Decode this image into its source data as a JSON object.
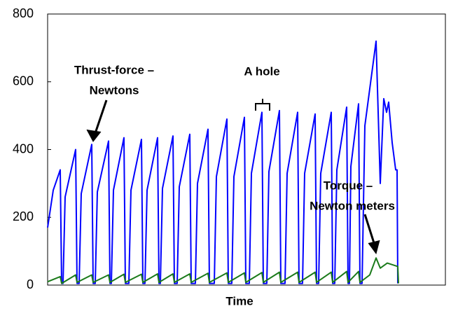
{
  "chart_data": {
    "type": "line",
    "xlabel": "Time",
    "ylim": [
      0,
      800
    ],
    "yticks": [
      0,
      200,
      400,
      600,
      800
    ],
    "xlim": [
      0,
      568
    ],
    "series": [
      {
        "name": "Thrust-force – Newtons",
        "color": "#0000ff",
        "x": [
          0,
          8,
          18,
          20,
          22,
          25,
          40,
          42,
          45,
          48,
          63,
          65,
          68,
          71,
          87,
          89,
          91,
          94,
          109,
          111,
          116,
          119,
          134,
          136,
          139,
          142,
          157,
          159,
          161,
          164,
          179,
          181,
          185,
          188,
          203,
          205,
          211,
          214,
          229,
          231,
          238,
          241,
          256,
          258,
          263,
          266,
          281,
          283,
          288,
          291,
          306,
          308,
          313,
          316,
          331,
          333,
          339,
          342,
          357,
          359,
          364,
          367,
          382,
          384,
          387,
          390,
          405,
          407,
          410,
          413,
          427,
          429,
          431,
          433,
          444,
          446,
          449,
          453,
          469,
          475,
          480,
          484,
          487,
          492,
          497,
          499,
          500
        ],
        "values": [
          170,
          280,
          340,
          5,
          5,
          260,
          400,
          5,
          5,
          270,
          415,
          5,
          5,
          275,
          425,
          5,
          5,
          280,
          435,
          5,
          5,
          280,
          430,
          5,
          5,
          280,
          435,
          5,
          5,
          285,
          440,
          5,
          5,
          290,
          445,
          5,
          5,
          300,
          460,
          5,
          5,
          320,
          490,
          5,
          5,
          320,
          495,
          5,
          5,
          330,
          510,
          5,
          5,
          335,
          515,
          5,
          5,
          330,
          510,
          5,
          5,
          330,
          505,
          5,
          5,
          330,
          510,
          5,
          5,
          340,
          525,
          5,
          5,
          350,
          535,
          5,
          5,
          470,
          720,
          300,
          550,
          510,
          540,
          420,
          340,
          340,
          5
        ]
      },
      {
        "name": "Torque – Newton meters",
        "color": "#1a7a1a",
        "x": [
          0,
          18,
          20,
          40,
          42,
          63,
          65,
          87,
          89,
          109,
          111,
          134,
          136,
          157,
          159,
          179,
          181,
          203,
          205,
          229,
          231,
          256,
          258,
          281,
          283,
          306,
          308,
          331,
          333,
          357,
          359,
          382,
          384,
          405,
          407,
          427,
          429,
          444,
          446,
          460,
          469,
          475,
          485,
          500,
          501
        ],
        "values": [
          10,
          25,
          5,
          30,
          8,
          30,
          8,
          30,
          8,
          32,
          8,
          32,
          8,
          33,
          8,
          33,
          8,
          33,
          8,
          35,
          8,
          36,
          8,
          36,
          8,
          37,
          8,
          38,
          8,
          38,
          8,
          38,
          8,
          38,
          8,
          40,
          8,
          40,
          8,
          30,
          80,
          50,
          65,
          55,
          5
        ]
      }
    ],
    "annotations": [
      "Thrust-force –",
      "Newtons",
      "A hole",
      "Torque –",
      "Newton meters"
    ]
  }
}
